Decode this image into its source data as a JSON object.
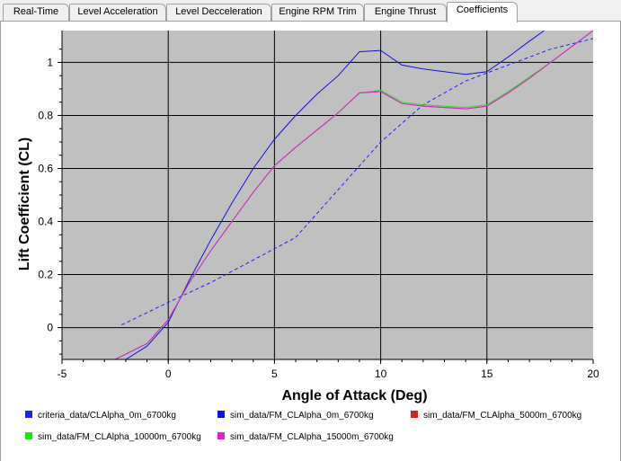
{
  "tabs": [
    {
      "label": "Real-Time",
      "active": false
    },
    {
      "label": "Level Acceleration",
      "active": false
    },
    {
      "label": "Level Decceleration",
      "active": false
    },
    {
      "label": "Engine RPM Trim",
      "active": false
    },
    {
      "label": "Engine Thrust",
      "active": false
    },
    {
      "label": "Coefficients",
      "active": true
    }
  ],
  "chart_data": {
    "type": "line",
    "title": "",
    "xlabel": "Angle of Attack (Deg)",
    "ylabel": "Lift Coefficient (CL)",
    "xlim": [
      -5,
      20
    ],
    "ylim": [
      -0.12,
      1.12
    ],
    "xticks": [
      "-5",
      "0",
      "5",
      "10",
      "15",
      "20"
    ],
    "yticks": [
      "0",
      "0.2",
      "0.4",
      "0.6",
      "0.8",
      "1"
    ],
    "grid": true,
    "plot_background": "#c0c0c0",
    "legend_position": "bottom",
    "series": [
      {
        "name": "criteria_data/CLAlpha_0m_6700kg",
        "color": "#2020ff",
        "dashed": true,
        "x": [
          -2.2,
          0,
          2,
          4,
          6,
          8,
          10,
          12,
          14,
          16,
          18,
          20
        ],
        "y": [
          0.01,
          0.095,
          0.17,
          0.255,
          0.34,
          0.52,
          0.7,
          0.84,
          0.93,
          0.99,
          1.05,
          1.09
        ]
      },
      {
        "name": "sim_data/FM_CLAlpha_0m_6700kg",
        "color": "#1010e0",
        "dashed": false,
        "x": [
          -2,
          -1,
          0,
          1,
          2,
          3,
          4,
          5,
          6,
          7,
          8,
          9,
          10,
          11,
          12,
          13,
          14,
          15,
          16,
          17,
          17.7
        ],
        "y": [
          -0.12,
          -0.07,
          0.02,
          0.18,
          0.33,
          0.47,
          0.6,
          0.71,
          0.8,
          0.88,
          0.95,
          1.04,
          1.045,
          0.99,
          0.975,
          0.965,
          0.955,
          0.965,
          1.02,
          1.08,
          1.12
        ]
      },
      {
        "name": "sim_data/FM_CLAlpha_5000m_6700kg",
        "color": "#e02020",
        "dashed": false,
        "x": [
          -2.5,
          -1,
          0,
          1,
          2,
          3,
          4,
          5,
          6,
          7,
          8,
          9,
          10,
          11,
          12,
          13,
          14,
          15,
          16,
          17,
          18,
          19,
          20
        ],
        "y": [
          -0.12,
          -0.06,
          0.03,
          0.17,
          0.29,
          0.4,
          0.51,
          0.61,
          0.68,
          0.745,
          0.81,
          0.885,
          0.89,
          0.845,
          0.835,
          0.83,
          0.825,
          0.835,
          0.885,
          0.94,
          1.0,
          1.06,
          1.12
        ]
      },
      {
        "name": "sim_data/FM_CLAlpha_10000m_6700kg",
        "color": "#20e020",
        "dashed": false,
        "x": [
          -2.5,
          -1,
          0,
          1,
          2,
          3,
          4,
          5,
          6,
          7,
          8,
          9,
          10,
          11,
          12,
          13,
          14,
          15,
          16,
          17,
          18,
          19,
          20
        ],
        "y": [
          -0.12,
          -0.06,
          0.03,
          0.17,
          0.29,
          0.4,
          0.51,
          0.61,
          0.68,
          0.745,
          0.81,
          0.885,
          0.895,
          0.85,
          0.84,
          0.835,
          0.83,
          0.84,
          0.89,
          0.945,
          1.0,
          1.06,
          1.12
        ]
      },
      {
        "name": "sim_data/FM_CLAlpha_15000m_6700kg",
        "color": "#e020e0",
        "dashed": false,
        "x": [
          -2.5,
          -1,
          0,
          1,
          2,
          3,
          4,
          5,
          6,
          7,
          8,
          9,
          10,
          11,
          12,
          13,
          14,
          15,
          16,
          17,
          18,
          19,
          20
        ],
        "y": [
          -0.12,
          -0.06,
          0.03,
          0.17,
          0.29,
          0.4,
          0.51,
          0.61,
          0.68,
          0.745,
          0.81,
          0.885,
          0.89,
          0.845,
          0.835,
          0.83,
          0.825,
          0.835,
          0.885,
          0.94,
          1.0,
          1.06,
          1.12
        ]
      }
    ]
  }
}
